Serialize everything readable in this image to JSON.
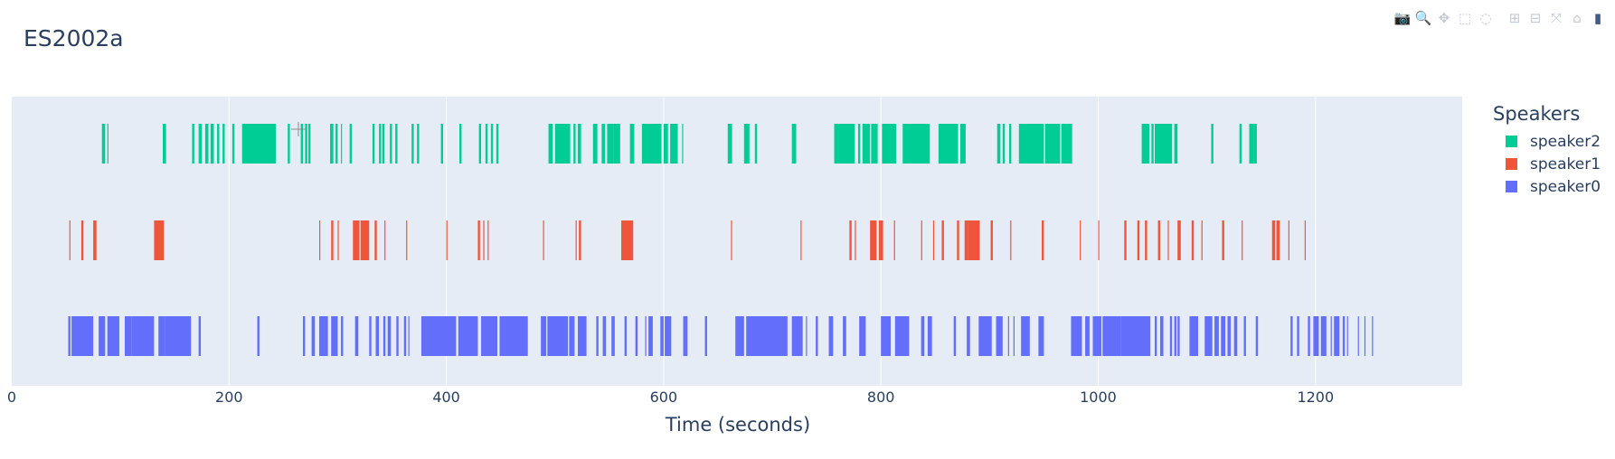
{
  "title": "ES2002a",
  "modebar": [
    {
      "name": "camera-icon",
      "glyph": "📷"
    },
    {
      "name": "zoom-icon",
      "glyph": "🔍"
    },
    {
      "name": "pan-icon",
      "glyph": "✥"
    },
    {
      "name": "box-select-icon",
      "glyph": "⬚"
    },
    {
      "name": "lasso-select-icon",
      "glyph": "◌"
    },
    {
      "name": "zoom-in-icon",
      "glyph": "⊞"
    },
    {
      "name": "zoom-out-icon",
      "glyph": "⊟"
    },
    {
      "name": "autoscale-icon",
      "glyph": "⤧"
    },
    {
      "name": "reset-axes-icon",
      "glyph": "⌂"
    },
    {
      "name": "plotly-logo-icon",
      "glyph": "▮"
    }
  ],
  "legend": {
    "title": "Speakers",
    "items": [
      {
        "name": "speaker2",
        "color": "#00cc96"
      },
      {
        "name": "speaker1",
        "color": "#ef553b"
      },
      {
        "name": "speaker0",
        "color": "#636efa"
      }
    ]
  },
  "chart_data": {
    "type": "timeline",
    "title": "ES2002a",
    "xlabel": "Time (seconds)",
    "ylabel": "",
    "xlim": [
      0,
      1335
    ],
    "xticks": [
      0,
      200,
      400,
      600,
      800,
      1000,
      1200
    ],
    "grid": true,
    "legend_position": "top-right",
    "series": [
      {
        "name": "speaker2",
        "color": "#00cc96",
        "segments": [
          [
            83,
            86
          ],
          [
            88,
            89
          ],
          [
            139,
            142
          ],
          [
            166,
            168
          ],
          [
            172,
            175
          ],
          [
            178,
            181
          ],
          [
            183,
            186
          ],
          [
            189,
            191
          ],
          [
            194,
            196
          ],
          [
            203,
            205
          ],
          [
            212,
            243
          ],
          [
            254,
            256
          ],
          [
            266,
            268
          ],
          [
            270,
            272
          ],
          [
            273,
            275
          ],
          [
            293,
            296
          ],
          [
            298,
            300
          ],
          [
            303,
            304
          ],
          [
            311,
            313
          ],
          [
            332,
            334
          ],
          [
            338,
            340
          ],
          [
            341,
            343
          ],
          [
            348,
            350
          ],
          [
            353,
            355
          ],
          [
            368,
            370
          ],
          [
            373,
            375
          ],
          [
            395,
            397
          ],
          [
            412,
            414
          ],
          [
            430,
            432
          ],
          [
            436,
            438
          ],
          [
            441,
            443
          ],
          [
            446,
            448
          ],
          [
            494,
            498
          ],
          [
            500,
            514
          ],
          [
            517,
            519
          ],
          [
            521,
            524
          ],
          [
            535,
            539
          ],
          [
            543,
            546
          ],
          [
            548,
            554
          ],
          [
            554,
            560
          ],
          [
            569,
            573
          ],
          [
            580,
            598
          ],
          [
            600,
            604
          ],
          [
            606,
            613
          ],
          [
            617,
            617
          ],
          [
            659,
            663
          ],
          [
            674,
            679
          ],
          [
            684,
            686
          ],
          [
            718,
            722
          ],
          [
            757,
            776
          ],
          [
            779,
            781
          ],
          [
            783,
            790
          ],
          [
            791,
            797
          ],
          [
            801,
            814
          ],
          [
            820,
            825
          ],
          [
            823,
            845
          ],
          [
            853,
            871
          ],
          [
            873,
            878
          ],
          [
            907,
            910
          ],
          [
            912,
            914
          ],
          [
            918,
            920
          ],
          [
            927,
            950
          ],
          [
            951,
            965
          ],
          [
            966,
            976
          ],
          [
            1040,
            1047
          ],
          [
            1049,
            1051
          ],
          [
            1052,
            1068
          ],
          [
            1070,
            1073
          ],
          [
            1104,
            1106
          ],
          [
            1130,
            1132
          ],
          [
            1139,
            1143
          ],
          [
            1143,
            1146
          ]
        ]
      },
      {
        "name": "speaker1",
        "color": "#ef553b",
        "segments": [
          [
            53,
            54
          ],
          [
            64,
            66
          ],
          [
            75,
            78
          ],
          [
            131,
            140
          ],
          [
            283,
            284
          ],
          [
            294,
            296
          ],
          [
            300,
            301
          ],
          [
            314,
            320
          ],
          [
            321,
            329
          ],
          [
            334,
            336
          ],
          [
            343,
            344
          ],
          [
            363,
            364
          ],
          [
            400,
            401
          ],
          [
            429,
            431
          ],
          [
            434,
            435
          ],
          [
            438,
            438
          ],
          [
            489,
            490
          ],
          [
            519,
            520
          ],
          [
            522,
            524
          ],
          [
            561,
            572
          ],
          [
            662,
            663
          ],
          [
            726,
            727
          ],
          [
            771,
            773
          ],
          [
            776,
            777
          ],
          [
            790,
            796
          ],
          [
            798,
            802
          ],
          [
            812,
            813
          ],
          [
            837,
            838
          ],
          [
            848,
            849
          ],
          [
            856,
            858
          ],
          [
            870,
            872
          ],
          [
            877,
            880
          ],
          [
            880,
            891
          ],
          [
            901,
            903
          ],
          [
            919,
            920
          ],
          [
            948,
            950
          ],
          [
            983,
            984
          ],
          [
            1000,
            1001
          ],
          [
            1024,
            1026
          ],
          [
            1036,
            1038
          ],
          [
            1043,
            1045
          ],
          [
            1055,
            1057
          ],
          [
            1064,
            1065
          ],
          [
            1073,
            1076
          ],
          [
            1086,
            1088
          ],
          [
            1095,
            1096
          ],
          [
            1114,
            1116
          ],
          [
            1132,
            1133
          ],
          [
            1160,
            1163
          ],
          [
            1164,
            1167
          ],
          [
            1175,
            1176
          ],
          [
            1190,
            1191
          ]
        ]
      },
      {
        "name": "speaker0",
        "color": "#636efa",
        "segments": [
          [
            52,
            54
          ],
          [
            55,
            75
          ],
          [
            80,
            86
          ],
          [
            88,
            99
          ],
          [
            104,
            110
          ],
          [
            110,
            131
          ],
          [
            135,
            141
          ],
          [
            141,
            165
          ],
          [
            172,
            174
          ],
          [
            226,
            228
          ],
          [
            268,
            270
          ],
          [
            276,
            279
          ],
          [
            283,
            291
          ],
          [
            294,
            300
          ],
          [
            303,
            305
          ],
          [
            316,
            319
          ],
          [
            329,
            331
          ],
          [
            335,
            338
          ],
          [
            342,
            344
          ],
          [
            346,
            349
          ],
          [
            354,
            356
          ],
          [
            361,
            363
          ],
          [
            365,
            366
          ],
          [
            377,
            409
          ],
          [
            411,
            429
          ],
          [
            432,
            447
          ],
          [
            449,
            475
          ],
          [
            487,
            492
          ],
          [
            493,
            512
          ],
          [
            513,
            518
          ],
          [
            521,
            529
          ],
          [
            538,
            540
          ],
          [
            544,
            547
          ],
          [
            552,
            555
          ],
          [
            564,
            566
          ],
          [
            574,
            576
          ],
          [
            583,
            584
          ],
          [
            586,
            590
          ],
          [
            597,
            600
          ],
          [
            601,
            607
          ],
          [
            618,
            622
          ],
          [
            638,
            640
          ],
          [
            666,
            674
          ],
          [
            676,
            714
          ],
          [
            718,
            728
          ],
          [
            731,
            732
          ],
          [
            740,
            742
          ],
          [
            752,
            756
          ],
          [
            765,
            768
          ],
          [
            780,
            786
          ],
          [
            800,
            809
          ],
          [
            813,
            826
          ],
          [
            837,
            840
          ],
          [
            843,
            847
          ],
          [
            867,
            869
          ],
          [
            879,
            882
          ],
          [
            890,
            902
          ],
          [
            906,
            912
          ],
          [
            917,
            918
          ],
          [
            922,
            923
          ],
          [
            929,
            937
          ],
          [
            945,
            950
          ],
          [
            975,
            985
          ],
          [
            988,
            992
          ],
          [
            995,
            1003
          ],
          [
            1004,
            1021
          ],
          [
            1021,
            1048
          ],
          [
            1052,
            1054
          ],
          [
            1057,
            1060
          ],
          [
            1066,
            1068
          ],
          [
            1070,
            1072
          ],
          [
            1073,
            1075
          ],
          [
            1084,
            1092
          ],
          [
            1098,
            1105
          ],
          [
            1107,
            1111
          ],
          [
            1113,
            1117
          ],
          [
            1119,
            1122
          ],
          [
            1125,
            1128
          ],
          [
            1134,
            1136
          ],
          [
            1145,
            1147
          ],
          [
            1177,
            1179
          ],
          [
            1183,
            1185
          ],
          [
            1193,
            1195
          ],
          [
            1198,
            1203
          ],
          [
            1205,
            1210
          ],
          [
            1214,
            1215
          ],
          [
            1217,
            1222
          ],
          [
            1225,
            1227
          ],
          [
            1229,
            1230
          ],
          [
            1239,
            1240
          ],
          [
            1245,
            1246
          ],
          [
            1252,
            1253
          ]
        ]
      }
    ]
  }
}
